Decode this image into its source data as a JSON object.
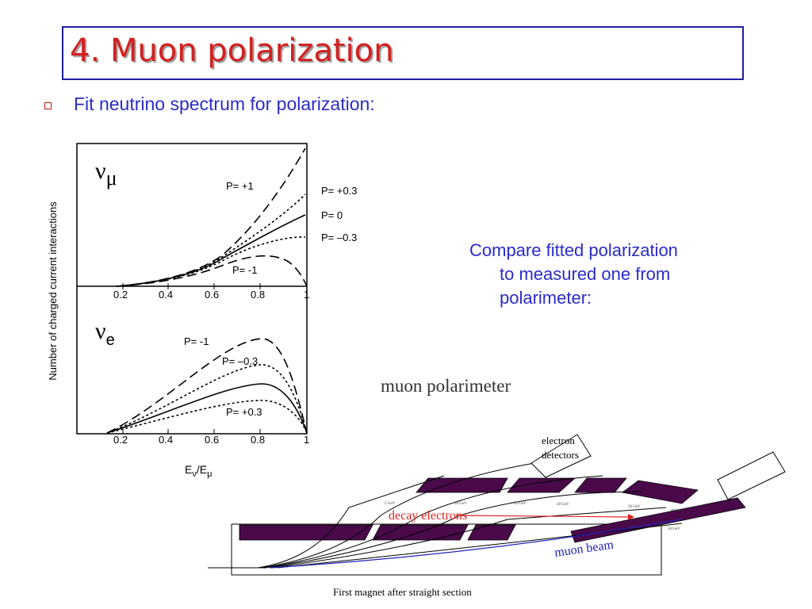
{
  "title": "4. Muon polarization",
  "bullet_text": "Fit neutrino spectrum for polarization:",
  "compare_lines": [
    "Compare fitted polarization",
    "to measured one from",
    "polarimeter:"
  ],
  "plot": {
    "ylabel": "Number of charged current interactions",
    "xlabel_main": "E",
    "xlabel_sub1": "ν",
    "xlabel_mid": "/E",
    "xlabel_sub2": "μ",
    "ticks": [
      "0.2",
      "0.4",
      "0.6",
      "0.8",
      "1"
    ],
    "numu_symbol": "ν",
    "numu_sub": "μ",
    "nue_symbol": "ν",
    "nue_sub": "e",
    "numu_labels": {
      "p_plus1": "P= +1",
      "p_plus03": "P= +0.3",
      "p_zero": "P= 0",
      "p_minus03": "P= –0.3",
      "p_minus1": "P= -1"
    },
    "nue_labels": {
      "p_minus1": "P= -1",
      "p_minus03": "P= –0.3",
      "p_plus03": "P= +0.3"
    }
  },
  "polarimeter": {
    "title": "muon polarimeter",
    "caption": "First magnet after straight section",
    "electron_detectors": [
      "electron",
      "detectors"
    ],
    "decay_electrons": "decay  electrons",
    "muon_beam": "muon beam",
    "energy_labels": [
      "5 GeV",
      "10 GeV",
      "15 GeV",
      "20 GeV",
      "30 GeV",
      "40 GeV",
      "50 GeV"
    ]
  },
  "colors": {
    "title": "#d42020",
    "title_border": "#2020a0",
    "text_blue": "#2b2bc8",
    "magnet": "#4a0a4a",
    "decay_red": "#e02020",
    "beam_blue": "#2020c0"
  }
}
